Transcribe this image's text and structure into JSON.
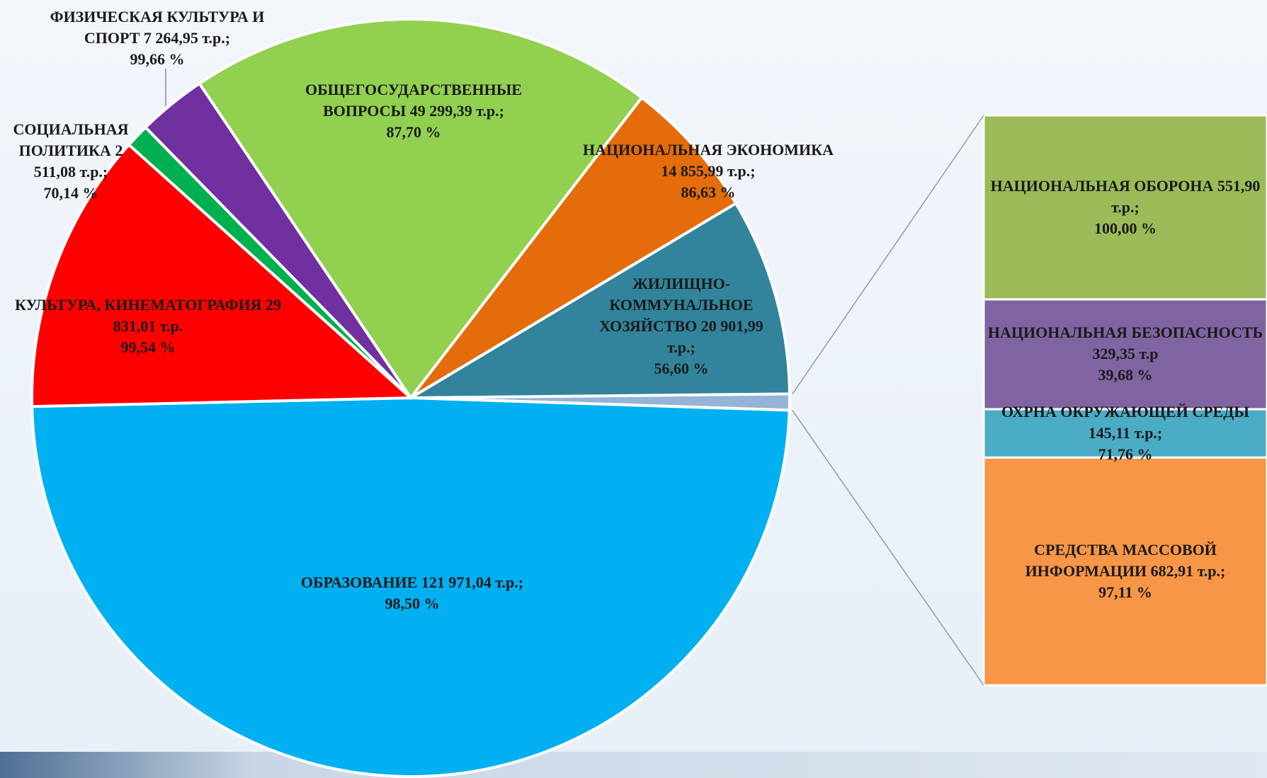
{
  "chart_data": {
    "type": "pie-of-bar",
    "categories": [
      "ОБРАЗОВАНИЕ",
      "КУЛЬТУРА, КИНЕМАТОГРАФИЯ",
      "СОЦИАЛЬНАЯ ПОЛИТИКА",
      "ФИЗИЧЕСКАЯ КУЛЬТУРА И СПОРТ",
      "ОБЩЕГОСУДАРСТВЕННЫЕ ВОПРОСЫ",
      "НАЦИОНАЛЬНАЯ ЭКОНОМИКА",
      "ЖИЛИЩНО-КОММУНАЛЬНОЕ ХОЗЯЙСТВО"
    ],
    "values": [
      121971.04,
      29831.01,
      2511.08,
      7264.95,
      49299.39,
      14855.99,
      20901.99
    ],
    "value_labels": [
      "121 971,04 т.р.;",
      "29 831,01 т.р.",
      "2 511,08 т.р.;",
      "7 264,95 т.р.;",
      "49 299,39 т.р.;",
      "14 855,99 т.р.;",
      "20 901,99 т.р.;"
    ],
    "percents": [
      98.5,
      99.54,
      70.14,
      99.66,
      87.7,
      86.63,
      56.6
    ],
    "percent_labels": [
      "98,50 %",
      "99,54 %",
      "70,14 %",
      "99,66 %",
      "87,70 %",
      "86,63 %",
      "56,60 %"
    ],
    "colors": [
      "#00b0f0",
      "#ff0000",
      "#00b050",
      "#7030a0",
      "#92d050",
      "#e46c0a",
      "#31849b"
    ],
    "other_color": "#95b3d7",
    "bar": {
      "categories": [
        "НАЦИОНАЛЬНАЯ ОБОРОНА",
        "НАЦИОНАЛЬНАЯ БЕЗОПАСНОСТЬ",
        "ОХРНА ОКРУЖАЮЩЕЙ СРЕДЫ",
        "СРЕДСТВА МАССОВОЙ ИНФОРМАЦИИ"
      ],
      "values": [
        551.9,
        329.35,
        145.11,
        682.91
      ],
      "value_labels": [
        "551,90 т.р.;",
        "329,35 т.р",
        "145,11 т.р.;",
        "682,91 т.р.;"
      ],
      "percents": [
        100,
        39.68,
        71.76,
        97.11
      ],
      "percent_labels": [
        "100,00 %",
        "39,68 %",
        "71,76 %",
        "97,11 %"
      ],
      "colors": [
        "#9bbb59",
        "#8064a2",
        "#4bacc6",
        "#f79646"
      ]
    }
  }
}
